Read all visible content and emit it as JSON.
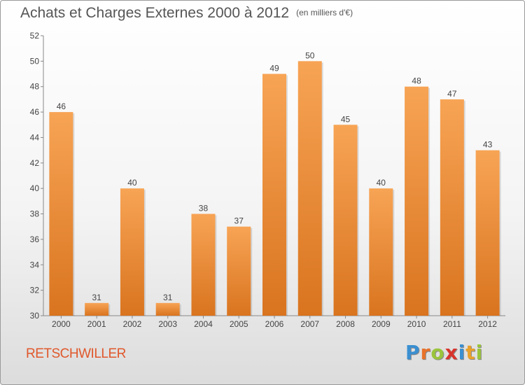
{
  "chart": {
    "title": "Achats et Charges Externes 2000 à 2012",
    "unit": "(en milliers d'€)",
    "commune": "RETSCHWILLER"
  },
  "brand": {
    "letters": [
      "P",
      "r",
      "o",
      "x",
      "i",
      "t",
      "i"
    ],
    "colors": [
      "#3a8fd0",
      "#e8722a",
      "#9ac43c",
      "#d8342c",
      "#3a8fd0",
      "#e8a12a",
      "#9ac43c"
    ]
  },
  "colors": {
    "bar_light": "#f7a455",
    "bar_dark": "#d9741f",
    "axis": "#888888",
    "text": "#444444"
  },
  "chart_data": {
    "type": "bar",
    "title": "Achats et Charges Externes 2000 à 2012",
    "subtitle": "(en milliers d'€)",
    "categories": [
      "2000",
      "2001",
      "2002",
      "2003",
      "2004",
      "2005",
      "2006",
      "2007",
      "2008",
      "2009",
      "2010",
      "2011",
      "2012"
    ],
    "values": [
      46,
      31,
      40,
      31,
      38,
      37,
      49,
      50,
      45,
      40,
      48,
      47,
      43
    ],
    "ylim": [
      30,
      52
    ],
    "yticks": [
      30,
      32,
      34,
      36,
      38,
      40,
      42,
      44,
      46,
      48,
      50,
      52
    ],
    "grid": false,
    "data_labels": true
  }
}
